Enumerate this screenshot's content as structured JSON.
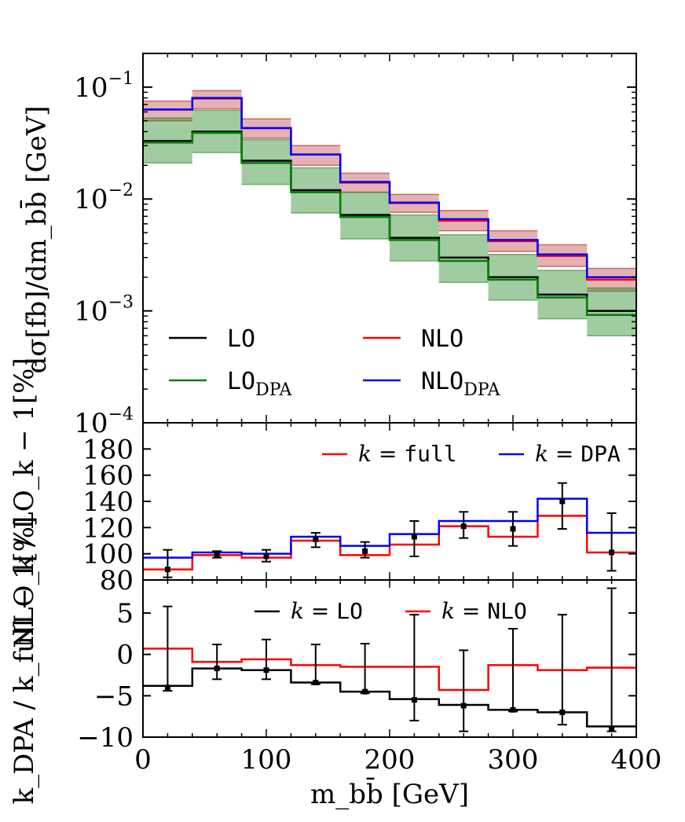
{
  "chart_data": [
    {
      "type": "histogram-step",
      "panel": "top",
      "ylabel": "dσ[fb]/dm_bb̄ [GeV]",
      "yscale": "log",
      "ylim": [
        0.0001,
        0.2
      ],
      "y_ticks": [
        {
          "value": 0.1,
          "base": "10",
          "exp": "−1"
        },
        {
          "value": 0.01,
          "base": "10",
          "exp": "−2"
        },
        {
          "value": 0.001,
          "base": "10",
          "exp": "−3"
        },
        {
          "value": 0.0001,
          "base": "10",
          "exp": "−4"
        }
      ],
      "bin_edges": [
        0,
        40,
        80,
        120,
        160,
        200,
        240,
        280,
        320,
        360,
        400
      ],
      "series": [
        {
          "name": "LO",
          "color": "#000000",
          "values": [
            0.033,
            0.04,
            0.022,
            0.012,
            0.0072,
            0.0045,
            0.003,
            0.002,
            0.0014,
            0.001
          ]
        },
        {
          "name": "LO_DPA",
          "color": "#008000",
          "values": [
            0.032,
            0.039,
            0.021,
            0.0115,
            0.0069,
            0.0043,
            0.0028,
            0.0019,
            0.00132,
            0.00092
          ]
        },
        {
          "name": "NLO",
          "color": "#ff0000",
          "values": [
            0.063,
            0.079,
            0.043,
            0.025,
            0.014,
            0.0092,
            0.0064,
            0.0042,
            0.0031,
            0.0019
          ]
        },
        {
          "name": "NLO_DPA",
          "color": "#0000ff",
          "values": [
            0.063,
            0.08,
            0.043,
            0.025,
            0.0142,
            0.0093,
            0.0066,
            0.0043,
            0.0032,
            0.002
          ]
        }
      ],
      "bands": [
        {
          "name": "NLO scale band",
          "color": "#b22222",
          "opacity": 0.35,
          "low": [
            0.05,
            0.064,
            0.035,
            0.02,
            0.0115,
            0.0076,
            0.0052,
            0.0034,
            0.0025,
            0.0015
          ],
          "high": [
            0.075,
            0.093,
            0.052,
            0.03,
            0.017,
            0.011,
            0.0079,
            0.0052,
            0.0039,
            0.0024
          ]
        },
        {
          "name": "LO scale band",
          "color": "#2e8b2e",
          "opacity": 0.45,
          "low": [
            0.021,
            0.026,
            0.0135,
            0.0075,
            0.0044,
            0.0028,
            0.0018,
            0.00125,
            0.00085,
            0.0006
          ],
          "high": [
            0.053,
            0.062,
            0.034,
            0.019,
            0.0115,
            0.0072,
            0.0048,
            0.0032,
            0.0023,
            0.0016
          ]
        }
      ],
      "legend": [
        {
          "label": "LO",
          "color": "#000000"
        },
        {
          "label": "NLO",
          "color": "#ff0000"
        },
        {
          "label": "LO",
          "sub": "DPA",
          "color": "#008000"
        },
        {
          "label": "NLO",
          "sub": "DPA",
          "color": "#0000ff"
        }
      ]
    },
    {
      "type": "histogram-step",
      "panel": "middle",
      "ylabel": "NLO_k / LO_k − 1[%]",
      "ylim": [
        80,
        200
      ],
      "y_ticks": [
        "80",
        "100",
        "120",
        "140",
        "160",
        "180"
      ],
      "bin_edges": [
        0,
        40,
        80,
        120,
        160,
        200,
        240,
        280,
        320,
        360,
        400
      ],
      "series": [
        {
          "name": "k = full",
          "color": "#ff0000",
          "values": [
            88,
            99,
            97,
            110,
            99,
            107,
            121,
            113,
            129,
            101
          ]
        },
        {
          "name": "k = DPA",
          "color": "#0000ff",
          "values": [
            97,
            101,
            100,
            113,
            106,
            115,
            125,
            125,
            142,
            116
          ]
        }
      ],
      "error_bars": [
        {
          "x": 20,
          "y": 88,
          "lo": 82,
          "hi": 103
        },
        {
          "x": 60,
          "y": 99,
          "lo": 97,
          "hi": 102
        },
        {
          "x": 100,
          "y": 98,
          "lo": 94,
          "hi": 103
        },
        {
          "x": 140,
          "y": 111,
          "lo": 105,
          "hi": 116
        },
        {
          "x": 180,
          "y": 102,
          "lo": 97,
          "hi": 109
        },
        {
          "x": 220,
          "y": 113,
          "lo": 98,
          "hi": 125
        },
        {
          "x": 260,
          "y": 121,
          "lo": 112,
          "hi": 132
        },
        {
          "x": 300,
          "y": 119,
          "lo": 106,
          "hi": 132
        },
        {
          "x": 340,
          "y": 140,
          "lo": 119,
          "hi": 154
        },
        {
          "x": 380,
          "y": 101,
          "lo": 87,
          "hi": 131
        }
      ],
      "legend": [
        {
          "label_math": "k = ",
          "label_code": "full",
          "color": "#ff0000"
        },
        {
          "label_math": "k = ",
          "label_code": "DPA",
          "color": "#0000ff"
        }
      ]
    },
    {
      "type": "histogram-step",
      "panel": "bottom",
      "ylabel": "k_DPA / k_full − 1[%]",
      "ylim": [
        -10,
        9
      ],
      "y_ticks": [
        "5",
        "0",
        "−5",
        "−10"
      ],
      "xlabel": "m_bb̄ [GeV]",
      "x_ticks": [
        "0",
        "100",
        "200",
        "300",
        "400"
      ],
      "bin_edges": [
        0,
        40,
        80,
        120,
        160,
        200,
        240,
        280,
        320,
        360,
        400
      ],
      "series": [
        {
          "name": "k = LO",
          "color": "#000000",
          "values": [
            -3.8,
            -1.7,
            -1.9,
            -3.4,
            -4.5,
            -5.4,
            -6.1,
            -6.7,
            -7.0,
            -8.7
          ]
        },
        {
          "name": "k = NLO",
          "color": "#ff0000",
          "values": [
            0.7,
            -0.9,
            -0.6,
            -1.3,
            -1.5,
            -1.5,
            -4.3,
            -1.3,
            -1.9,
            -1.6
          ]
        }
      ],
      "error_bars": [
        {
          "x": 20,
          "y": -4.0,
          "lo": -4.4,
          "hi": 5.8
        },
        {
          "x": 60,
          "y": -1.7,
          "lo": -3.0,
          "hi": 1.2
        },
        {
          "x": 100,
          "y": -1.9,
          "lo": -3.0,
          "hi": 1.8
        },
        {
          "x": 140,
          "y": -3.4,
          "lo": -3.6,
          "hi": 1.2
        },
        {
          "x": 180,
          "y": -4.5,
          "lo": -4.7,
          "hi": 1.3
        },
        {
          "x": 220,
          "y": -5.5,
          "lo": -8.0,
          "hi": 4.8
        },
        {
          "x": 260,
          "y": -6.2,
          "lo": -9.3,
          "hi": 0.5
        },
        {
          "x": 300,
          "y": -6.7,
          "lo": -6.9,
          "hi": 3.1
        },
        {
          "x": 340,
          "y": -7.0,
          "lo": -8.5,
          "hi": 4.8
        },
        {
          "x": 380,
          "y": -9.0,
          "lo": -9.3,
          "hi": 8.0
        }
      ],
      "legend": [
        {
          "label_math": "k = ",
          "label_code": "LO",
          "color": "#000000"
        },
        {
          "label_math": "k = ",
          "label_code": "NLO",
          "color": "#ff0000"
        }
      ]
    }
  ]
}
